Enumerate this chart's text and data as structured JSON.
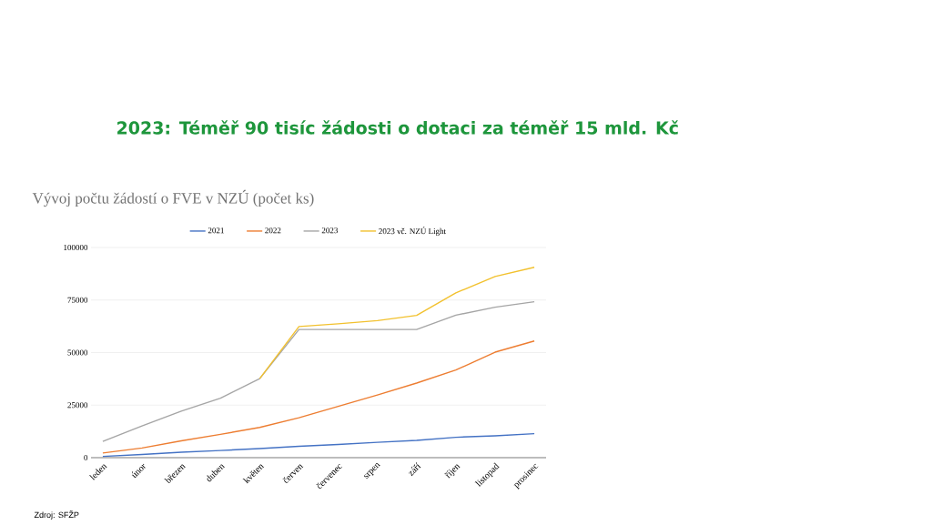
{
  "chart_data": {
    "type": "line",
    "title": "2023: Téměř 90 tisíc žádosti o dotaci za téměř 15 mld. Kč",
    "subtitle": "Vývoj počtu žádostí o FVE v NZÚ (počet ks)",
    "categories": [
      "leden",
      "únor",
      "březen",
      "duben",
      "květen",
      "červen",
      "červenec",
      "srpen",
      "září",
      "říjen",
      "listopad",
      "prosinec"
    ],
    "series": [
      {
        "name": "2021",
        "color": "#4472c4",
        "values": [
          600,
          1500,
          2600,
          3400,
          4300,
          5400,
          6300,
          7300,
          8200,
          9700,
          10400,
          11400
        ]
      },
      {
        "name": "2022",
        "color": "#ed7d31",
        "values": [
          2200,
          4600,
          8000,
          11100,
          14400,
          19000,
          24400,
          29800,
          35500,
          41700,
          50200,
          55500
        ]
      },
      {
        "name": "2023",
        "color": "#a5a5a5",
        "values": [
          7700,
          15100,
          22100,
          28300,
          37600,
          61000,
          61000,
          61000,
          61000,
          67800,
          71600,
          74200
        ]
      },
      {
        "name": "2023 vč. NZÚ Light",
        "color": "#f2c12e",
        "values": [
          null,
          null,
          null,
          null,
          37600,
          62400,
          63700,
          65200,
          67700,
          78400,
          86200,
          90600
        ]
      }
    ],
    "ylim": [
      0,
      100000
    ],
    "yticks": [
      0,
      25000,
      50000,
      75000,
      100000
    ],
    "grid": "y",
    "legend": "top",
    "marker": "none",
    "line_style": "solid",
    "annotations": [
      "Zdroj: SFŽP"
    ]
  }
}
